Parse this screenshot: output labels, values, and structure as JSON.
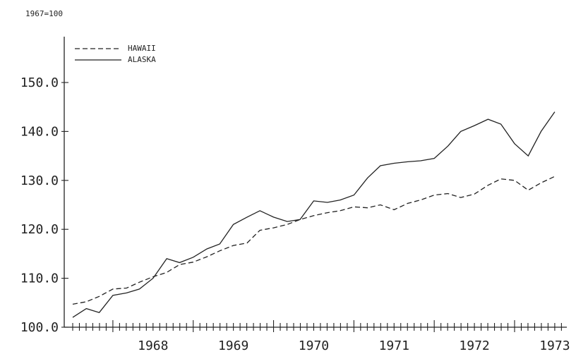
{
  "chart_data": {
    "type": "line",
    "title": "",
    "unit_label": "1967=100",
    "xlabel": "",
    "ylabel": "",
    "ylim": [
      100,
      150
    ],
    "y_ticks": [
      "100.0",
      "110.0",
      "120.0",
      "130.0",
      "140.0",
      "150.0"
    ],
    "x_ticks": [
      "1968",
      "1969",
      "1970",
      "1971",
      "1972",
      "1973"
    ],
    "legend_position": "top-left",
    "series": [
      {
        "name": "HAWAII",
        "style": "dashed",
        "color": "#222222",
        "x": [
          1967.5,
          1967.67,
          1967.83,
          1968.0,
          1968.17,
          1968.33,
          1968.5,
          1968.67,
          1968.83,
          1969.0,
          1969.17,
          1969.33,
          1969.5,
          1969.67,
          1969.83,
          1970.0,
          1970.17,
          1970.33,
          1970.5,
          1970.67,
          1970.83,
          1971.0,
          1971.17,
          1971.33,
          1971.5,
          1971.67,
          1971.83,
          1972.0,
          1972.17,
          1972.33,
          1972.5,
          1972.67,
          1972.83,
          1973.0,
          1973.17,
          1973.33,
          1973.5
        ],
        "values": [
          104.7,
          105.2,
          106.3,
          107.8,
          108.0,
          109.2,
          110.3,
          111.2,
          112.8,
          113.3,
          114.4,
          115.6,
          116.7,
          117.2,
          119.8,
          120.3,
          121.0,
          122.0,
          122.8,
          123.4,
          123.8,
          124.6,
          124.4,
          125.0,
          124.0,
          125.3,
          126.0,
          127.0,
          127.3,
          126.5,
          127.2,
          129.0,
          130.3,
          130.0,
          128.0,
          129.5,
          130.8
        ]
      },
      {
        "name": "ALASKA",
        "style": "solid",
        "color": "#222222",
        "x": [
          1967.5,
          1967.67,
          1967.83,
          1968.0,
          1968.17,
          1968.33,
          1968.5,
          1968.67,
          1968.83,
          1969.0,
          1969.17,
          1969.33,
          1969.5,
          1969.67,
          1969.83,
          1970.0,
          1970.17,
          1970.33,
          1970.5,
          1970.67,
          1970.83,
          1971.0,
          1971.17,
          1971.33,
          1971.5,
          1971.67,
          1971.83,
          1972.0,
          1972.17,
          1972.33,
          1972.5,
          1972.67,
          1972.83,
          1973.0,
          1973.17,
          1973.33,
          1973.5
        ],
        "values": [
          102.0,
          103.8,
          103.0,
          106.5,
          107.0,
          107.8,
          110.0,
          114.0,
          113.2,
          114.3,
          116.0,
          117.0,
          121.0,
          122.5,
          123.8,
          122.5,
          121.6,
          122.0,
          125.8,
          125.5,
          126.0,
          127.0,
          130.5,
          133.0,
          133.5,
          133.8,
          134.0,
          134.5,
          137.0,
          140.0,
          141.2,
          142.5,
          141.5,
          137.5,
          135.0,
          140.0,
          144.0
        ]
      }
    ]
  }
}
